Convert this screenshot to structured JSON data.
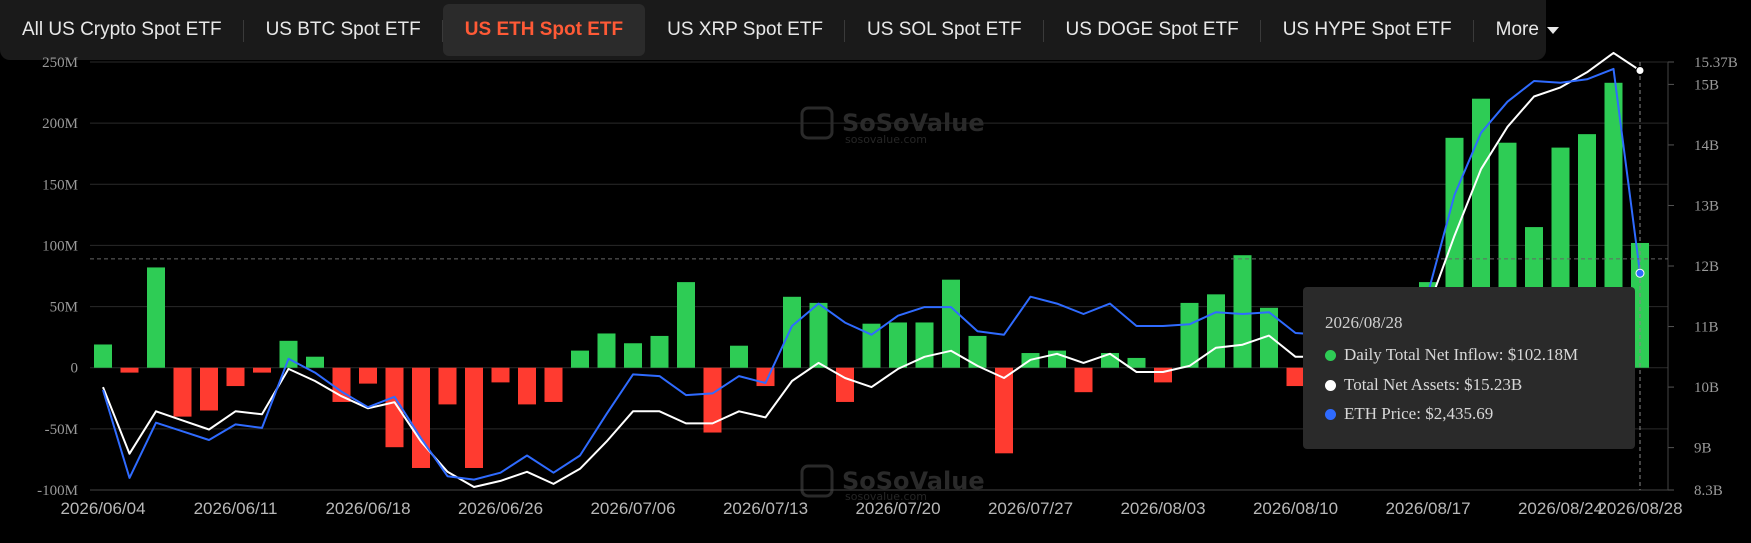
{
  "tabs": [
    {
      "label": "All US Crypto Spot ETF"
    },
    {
      "label": "US BTC Spot ETF"
    },
    {
      "label": "US ETH Spot ETF"
    },
    {
      "label": "US XRP Spot ETF"
    },
    {
      "label": "US SOL Spot ETF"
    },
    {
      "label": "US DOGE Spot ETF"
    },
    {
      "label": "US HYPE Spot ETF"
    },
    {
      "label": "More"
    }
  ],
  "watermark": {
    "brand": "SoSoValue",
    "url": "sosovalue.com"
  },
  "tooltip": {
    "date": "2026/08/28",
    "inflow": "Daily Total Net Inflow: $102.18M",
    "assets": "Total Net Assets: $15.23B",
    "price": "ETH Price: $2,435.69"
  },
  "colors": {
    "positive": "#2ecc55",
    "negative": "#ff3b30",
    "assets_line": "#ffffff",
    "price_line": "#2f6bff",
    "active_tab": "#ff5a36"
  },
  "chart_data": {
    "type": "bar",
    "x_tick_labels": [
      "2026/06/04",
      "2026/06/11",
      "2026/06/18",
      "2026/06/26",
      "2026/07/06",
      "2026/07/13",
      "2026/07/20",
      "2026/07/27",
      "2026/08/03",
      "2026/08/10",
      "2026/08/17",
      "2026/08/24",
      "2026/08/28"
    ],
    "y_left_ticks": [
      "-100M",
      "-50M",
      "0",
      "50M",
      "100M",
      "150M",
      "200M",
      "250M"
    ],
    "y_left_range": [
      -100,
      250
    ],
    "y_right_ticks": [
      "8.3B",
      "9B",
      "10B",
      "11B",
      "12B",
      "13B",
      "14B",
      "15B",
      "15.37B"
    ],
    "y_right_range": [
      8.3,
      15.37
    ],
    "series": [
      {
        "name": "Daily Total Net Inflow",
        "unit": "M",
        "values": [
          19,
          -4,
          82,
          -40,
          -35,
          -15,
          -4,
          22,
          9,
          -28,
          -13,
          -65,
          -82,
          -30,
          -82,
          -12,
          -30,
          -28,
          14,
          28,
          20,
          26,
          70,
          -53,
          18,
          -15,
          58,
          53,
          -28,
          36,
          37,
          37,
          72,
          26,
          -70,
          12,
          14,
          -20,
          12,
          8,
          -12,
          53,
          60,
          92,
          49,
          -15,
          -10,
          -8,
          -6,
          -3,
          70,
          188,
          220,
          184,
          115,
          180,
          191,
          233,
          102
        ]
      },
      {
        "name": "Total Net Assets",
        "unit": "B",
        "values": [
          10.0,
          8.9,
          9.6,
          9.45,
          9.3,
          9.6,
          9.55,
          10.3,
          10.1,
          9.85,
          9.65,
          9.75,
          9.1,
          8.6,
          8.35,
          8.45,
          8.6,
          8.4,
          8.65,
          9.1,
          9.6,
          9.6,
          9.4,
          9.4,
          9.6,
          9.5,
          10.1,
          10.4,
          10.15,
          10.0,
          10.3,
          10.5,
          10.6,
          10.35,
          10.15,
          10.45,
          10.55,
          10.4,
          10.55,
          10.25,
          10.25,
          10.35,
          10.65,
          10.7,
          10.85,
          10.5,
          10.5,
          10.5,
          10.6,
          10.8,
          11.3,
          12.5,
          13.6,
          14.3,
          14.8,
          14.95,
          15.2,
          15.52,
          15.23
        ]
      },
      {
        "name": "ETH Price",
        "unit": "USD",
        "values": [
          1760,
          1250,
          1570,
          1520,
          1470,
          1560,
          1540,
          1940,
          1860,
          1750,
          1660,
          1720,
          1480,
          1260,
          1240,
          1280,
          1380,
          1280,
          1380,
          1620,
          1850,
          1840,
          1730,
          1740,
          1840,
          1800,
          2130,
          2260,
          2150,
          2080,
          2190,
          2240,
          2240,
          2100,
          2080,
          2300,
          2260,
          2200,
          2260,
          2130,
          2130,
          2140,
          2210,
          2200,
          2210,
          2090,
          2080,
          2080,
          2100,
          2160,
          2320,
          2890,
          3250,
          3430,
          3550,
          3540,
          3560,
          3620,
          2436
        ]
      }
    ]
  }
}
